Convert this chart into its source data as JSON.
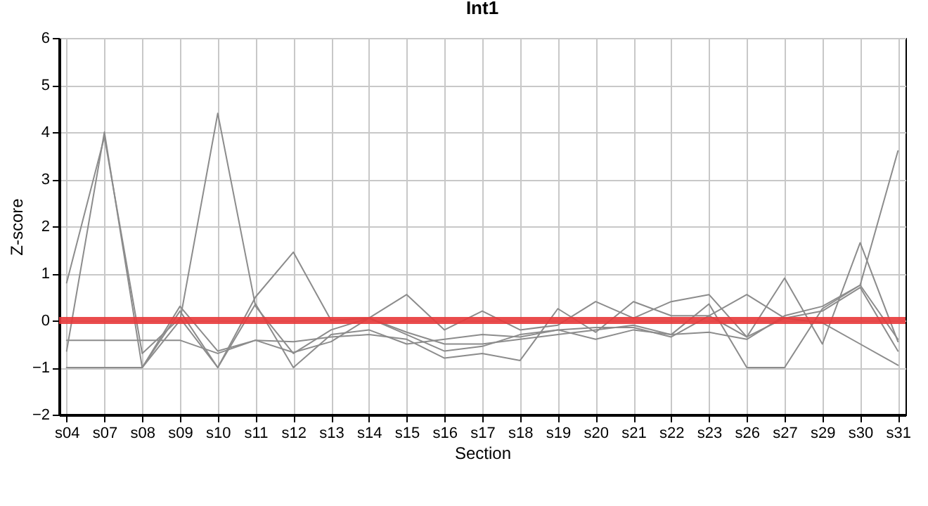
{
  "chart_data": {
    "type": "line",
    "title": "Int1",
    "xlabel": "Section",
    "ylabel": "Z-score",
    "categories": [
      "s04",
      "s07",
      "s08",
      "s09",
      "s10",
      "s11",
      "s12",
      "s13",
      "s14",
      "s15",
      "s16",
      "s17",
      "s18",
      "s19",
      "s20",
      "s21",
      "s22",
      "s23",
      "s26",
      "s27",
      "s29",
      "s30",
      "s31"
    ],
    "series": [
      {
        "color": "#8c8c8c",
        "values": [
          0.8,
          3.9,
          -0.7,
          0.05,
          -1.0,
          0.35,
          -1.0,
          -0.3,
          -0.2,
          -0.5,
          -0.4,
          -0.3,
          -0.35,
          -0.2,
          -0.4,
          -0.2,
          -0.3,
          -0.25,
          -0.4,
          0.1,
          0.3,
          0.75,
          3.6
        ]
      },
      {
        "color": "#8c8c8c",
        "values": [
          -0.65,
          4.0,
          -1.0,
          0.0,
          4.4,
          0.3,
          -0.7,
          -0.2,
          0.05,
          0.55,
          -0.2,
          0.2,
          -0.2,
          -0.1,
          0.4,
          0.05,
          0.4,
          0.55,
          -0.35,
          0.9,
          -0.5,
          1.65,
          -0.45
        ]
      },
      {
        "color": "#8c8c8c",
        "values": [
          -0.42,
          -0.42,
          -0.42,
          -0.42,
          -0.7,
          -0.42,
          -0.68,
          -0.45,
          0.05,
          -0.3,
          -0.65,
          -0.55,
          -0.3,
          -0.2,
          -0.15,
          -0.15,
          -0.35,
          0.1,
          -0.35,
          0.05,
          0.2,
          0.7,
          -0.65
        ]
      },
      {
        "color": "#8c8c8c",
        "values": [
          -1.0,
          -1.0,
          -1.0,
          0.3,
          -0.65,
          -0.42,
          -0.45,
          -0.35,
          -0.3,
          -0.4,
          -0.8,
          -0.7,
          -0.85,
          0.25,
          -0.25,
          0.4,
          0.1,
          0.1,
          0.55,
          0.05,
          -0.05,
          -0.5,
          -0.95
        ]
      },
      {
        "color": "#8c8c8c",
        "values": [
          -1.0,
          -1.0,
          -1.0,
          0.2,
          -1.0,
          0.5,
          1.45,
          0.0,
          0.05,
          -0.25,
          -0.5,
          -0.5,
          -0.4,
          -0.3,
          -0.2,
          -0.1,
          -0.3,
          0.35,
          -1.0,
          -1.0,
          0.25,
          0.75,
          -0.4
        ]
      }
    ],
    "ylim": [
      -2,
      6
    ],
    "yticks": [
      -2,
      -1,
      0,
      1,
      2,
      3,
      4,
      5,
      6
    ],
    "grid": true,
    "ref_lines": [
      {
        "axis": "y",
        "value": 0,
        "color": "#e8383a"
      }
    ]
  }
}
